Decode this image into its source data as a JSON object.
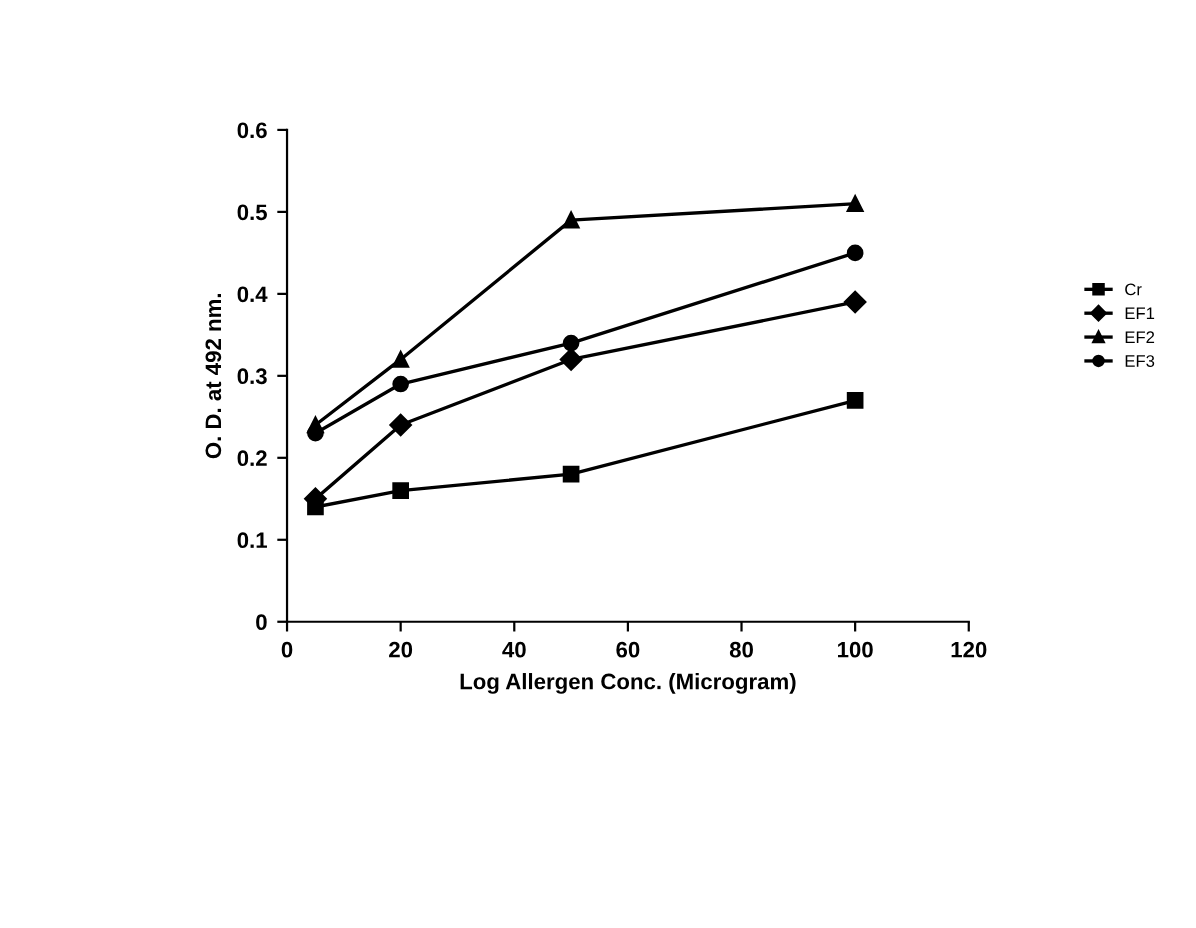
{
  "chart_data": {
    "type": "line",
    "xlabel": "Log Allergen Conc. (Microgram)",
    "ylabel": "O. D. at 492 nm.",
    "x": [
      5,
      20,
      50,
      100
    ],
    "series": [
      {
        "name": "Cr",
        "color": "#000000",
        "marker": "square",
        "values": [
          0.14,
          0.16,
          0.18,
          0.27
        ]
      },
      {
        "name": "EF1",
        "color": "#000000",
        "marker": "diamond",
        "values": [
          0.15,
          0.24,
          0.32,
          0.39
        ]
      },
      {
        "name": "EF2",
        "color": "#000000",
        "marker": "triangle",
        "values": [
          0.24,
          0.32,
          0.49,
          0.51
        ]
      },
      {
        "name": "EF3",
        "color": "#000000",
        "marker": "circle",
        "values": [
          0.23,
          0.29,
          0.34,
          0.45
        ]
      }
    ],
    "xlim": [
      0,
      120
    ],
    "xticks": [
      0,
      20,
      40,
      60,
      80,
      100,
      120
    ],
    "ylim": [
      0,
      0.6
    ],
    "yticks": [
      0,
      0.1,
      0.2,
      0.3,
      0.4,
      0.5,
      0.6
    ],
    "legend": "right",
    "grid": false,
    "line_style": "solid"
  }
}
